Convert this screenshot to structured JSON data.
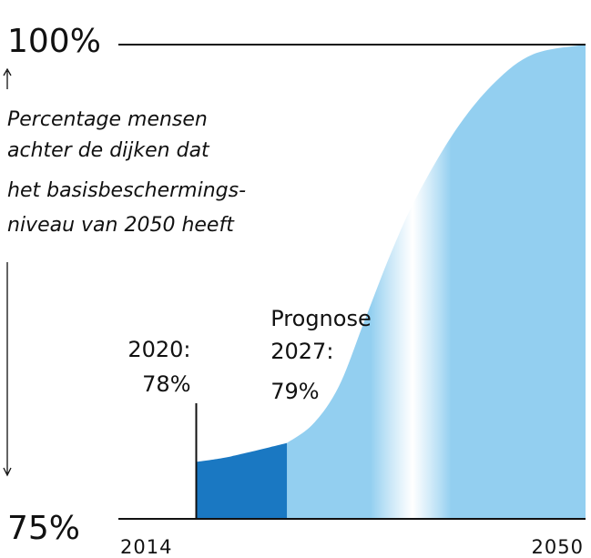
{
  "chart_data": {
    "type": "area",
    "ylabel": [
      "Percentage mensen",
      "achter de dijken dat",
      "het basisbeschermings-",
      "niveau van 2050 heeft"
    ],
    "xlim": [
      2014,
      2050
    ],
    "xticks": [
      2014,
      2050
    ],
    "ylim": [
      75,
      100
    ],
    "yticks": [
      {
        "value": 75,
        "label": "75%"
      },
      {
        "value": 100,
        "label": "100%"
      }
    ],
    "grid": true,
    "annotations": [
      "2020:",
      "2027:",
      "Prognose"
    ],
    "series": [
      {
        "color": "#1a78c2",
        "x": [
          2020,
          2022,
          2024,
          2027
        ],
        "values": [
          78,
          78.2,
          78.5,
          79
        ],
        "value_labels": [
          "78%",
          null,
          null,
          "79%"
        ]
      },
      {
        "color": "#93cff0",
        "x": [
          2027,
          2029,
          2031,
          2033,
          2035,
          2037,
          2040,
          2043,
          2046,
          2050
        ],
        "values": [
          79,
          80,
          82,
          85.5,
          89,
          92,
          95.5,
          98,
          99.5,
          100
        ]
      }
    ]
  }
}
